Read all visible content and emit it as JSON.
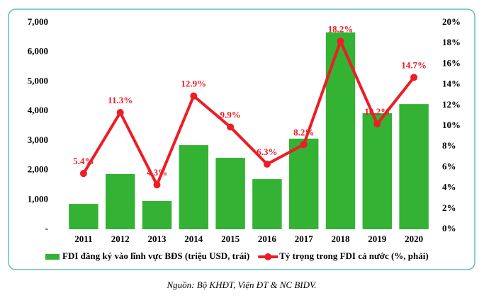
{
  "chart_data": {
    "type": "bar-line",
    "categories": [
      "2011",
      "2012",
      "2013",
      "2014",
      "2015",
      "2016",
      "2017",
      "2018",
      "2019",
      "2020"
    ],
    "series": [
      {
        "name": "FDI đăng ký vào lĩnh vực BĐS (triệu USD, trái)",
        "type": "bar",
        "color": "#33b233",
        "values": [
          860,
          1870,
          960,
          2850,
          2420,
          1700,
          3070,
          6670,
          3930,
          4240
        ]
      },
      {
        "name": "Tỷ trọng  trong FDI cả nước (%, phải)",
        "type": "line",
        "axis": "y2",
        "color": "#ee1c25",
        "values": [
          5.4,
          11.3,
          4.3,
          12.9,
          9.9,
          6.3,
          8.2,
          18.2,
          10.2,
          14.7
        ],
        "value_labels": [
          "5.4%",
          "11.3%",
          "4.3%",
          "12.9%",
          "9.9%",
          "6.3%",
          "8.2%",
          "18.2%",
          "10.2%",
          "14.7%"
        ]
      }
    ],
    "ylim": [
      0,
      7000
    ],
    "yticks": [
      {
        "value": 0,
        "label": "-"
      },
      {
        "value": 1000,
        "label": "1,000"
      },
      {
        "value": 2000,
        "label": "2,000"
      },
      {
        "value": 3000,
        "label": "3,000"
      },
      {
        "value": 4000,
        "label": "4,000"
      },
      {
        "value": 5000,
        "label": "5,000"
      },
      {
        "value": 6000,
        "label": "6,000"
      },
      {
        "value": 7000,
        "label": "7,000"
      }
    ],
    "y2lim": [
      0,
      20
    ],
    "y2ticks": [
      {
        "value": 0,
        "label": "0%"
      },
      {
        "value": 2,
        "label": "2%"
      },
      {
        "value": 4,
        "label": "4%"
      },
      {
        "value": 6,
        "label": "6%"
      },
      {
        "value": 8,
        "label": "8%"
      },
      {
        "value": 10,
        "label": "10%"
      },
      {
        "value": 12,
        "label": "12%"
      },
      {
        "value": 14,
        "label": "14%"
      },
      {
        "value": 16,
        "label": "16%"
      },
      {
        "value": 18,
        "label": "18%"
      },
      {
        "value": 20,
        "label": "20%"
      }
    ],
    "grid": false,
    "legend": "bottom",
    "source": "Nguồn: Bộ KHĐT, Viện ĐT & NC BIDV."
  }
}
